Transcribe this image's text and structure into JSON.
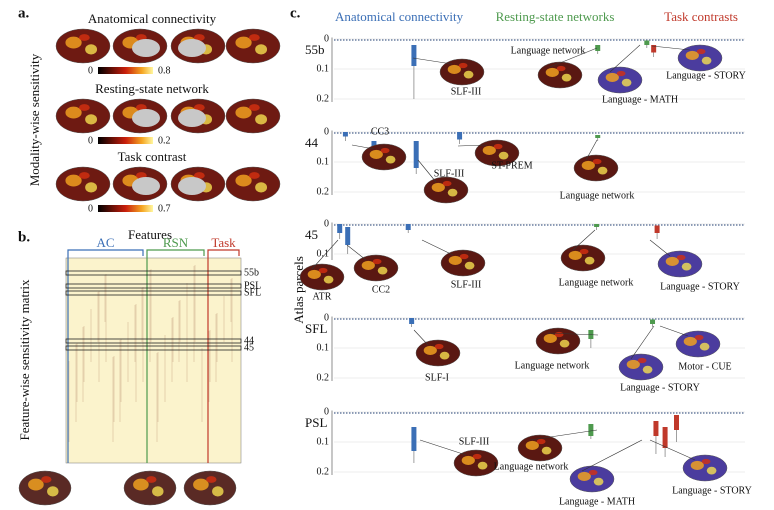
{
  "panels": {
    "a": {
      "label": "a.",
      "y_label": "Modality-wise sensitivity",
      "rows": [
        {
          "title": "Anatomical connectivity",
          "colorbar_min": 0,
          "colorbar_max": 0.8
        },
        {
          "title": "Resting-state network",
          "colorbar_min": 0,
          "colorbar_max": 0.2
        },
        {
          "title": "Task contrast",
          "colorbar_min": 0,
          "colorbar_max": 0.7
        }
      ]
    },
    "b": {
      "label": "b.",
      "title": "Features",
      "y_label": "Feature-wise sensitivity matrix",
      "groups": [
        "AC",
        "RSN",
        "Task"
      ],
      "row_labels": [
        "55b",
        "PSL",
        "SFL",
        "44",
        "45"
      ]
    },
    "c": {
      "label": "c.",
      "y_label": "Atlas parcels",
      "groups": [
        {
          "name": "Anatomical connectivity",
          "color": "#3b6fb6"
        },
        {
          "name": "Resting-state networks",
          "color": "#4e9a4e"
        },
        {
          "name": "Task contrasts",
          "color": "#c0392b"
        }
      ],
      "rows": [
        {
          "name": "55b",
          "ylim": [
            -0.005,
            0.21
          ],
          "yticks": [
            0,
            0.1,
            0.2
          ],
          "boxes": [
            {
              "feature": 70,
              "q1": 0.02,
              "q3": 0.09,
              "max": 0.2
            },
            {
              "feature": 231,
              "q1": 0.02,
              "q3": 0.04,
              "max": 0.05
            },
            {
              "feature": 274,
              "q1": 0.005,
              "q3": 0.02,
              "max": 0.03
            },
            {
              "feature": 280,
              "q1": 0.02,
              "q3": 0.045,
              "max": 0.06
            }
          ],
          "annotations": [
            "SLF-III",
            "Language network",
            "Language - MATH",
            "Language - STORY"
          ]
        },
        {
          "name": "44",
          "ylim": [
            -0.005,
            0.21
          ],
          "yticks": [
            0,
            0.1,
            0.2
          ],
          "boxes": [
            {
              "feature": 10,
              "q1": 0,
              "q3": 0.015,
              "max": 0.03
            },
            {
              "feature": 35,
              "q1": 0.03,
              "q3": 0.07,
              "max": 0.08
            },
            {
              "feature": 72,
              "q1": 0.03,
              "q3": 0.12,
              "max": 0.14
            },
            {
              "feature": 110,
              "q1": 0,
              "q3": 0.025,
              "max": 0.04
            },
            {
              "feature": 231,
              "q1": 0.01,
              "q3": 0.02,
              "max": 0.03
            }
          ],
          "annotations": [
            "CC3",
            "SLF-III",
            "ST-PREM",
            "Language network"
          ]
        },
        {
          "name": "45",
          "ylim": [
            -0.005,
            0.12
          ],
          "yticks": [
            0,
            0.1
          ],
          "boxes": [
            {
              "feature": 5,
              "q1": 0,
              "q3": 0.03,
              "max": 0.05
            },
            {
              "feature": 12,
              "q1": 0.01,
              "q3": 0.07,
              "max": 0.1
            },
            {
              "feature": 65,
              "q1": 0,
              "q3": 0.02,
              "max": 0.03
            },
            {
              "feature": 230,
              "q1": 0,
              "q3": 0.01,
              "max": 0.02
            },
            {
              "feature": 283,
              "q1": 0.005,
              "q3": 0.03,
              "max": 0.05
            }
          ],
          "annotations": [
            "ATR",
            "CC2",
            "SLF-III",
            "Language network",
            "Language - STORY"
          ]
        },
        {
          "name": "SFL",
          "ylim": [
            -0.005,
            0.21
          ],
          "yticks": [
            0,
            0.1,
            0.2
          ],
          "boxes": [
            {
              "feature": 68,
              "q1": 0,
              "q3": 0.02,
              "max": 0.03
            },
            {
              "feature": 225,
              "q1": 0.04,
              "q3": 0.07,
              "max": 0.1
            },
            {
              "feature": 279,
              "q1": 0.005,
              "q3": 0.02,
              "max": 0.03
            }
          ],
          "annotations": [
            "SLF-I",
            "Language network",
            "Language - STORY",
            "Motor - CUE"
          ]
        },
        {
          "name": "PSL",
          "ylim": [
            -0.005,
            0.21
          ],
          "yticks": [
            0,
            0.1,
            0.2
          ],
          "boxes": [
            {
              "feature": 70,
              "q1": 0.05,
              "q3": 0.13,
              "max": 0.17
            },
            {
              "feature": 225,
              "q1": 0.04,
              "q3": 0.08,
              "max": 0.09
            },
            {
              "feature": 282,
              "q1": 0.03,
              "q3": 0.08,
              "max": 0.14
            },
            {
              "feature": 290,
              "q1": 0.05,
              "q3": 0.12,
              "max": 0.15
            },
            {
              "feature": 300,
              "q1": 0.01,
              "q3": 0.06,
              "max": 0.1
            }
          ],
          "annotations": [
            "SLF-III",
            "Language network",
            "Language - MATH",
            "Language - STORY"
          ]
        }
      ]
    }
  }
}
